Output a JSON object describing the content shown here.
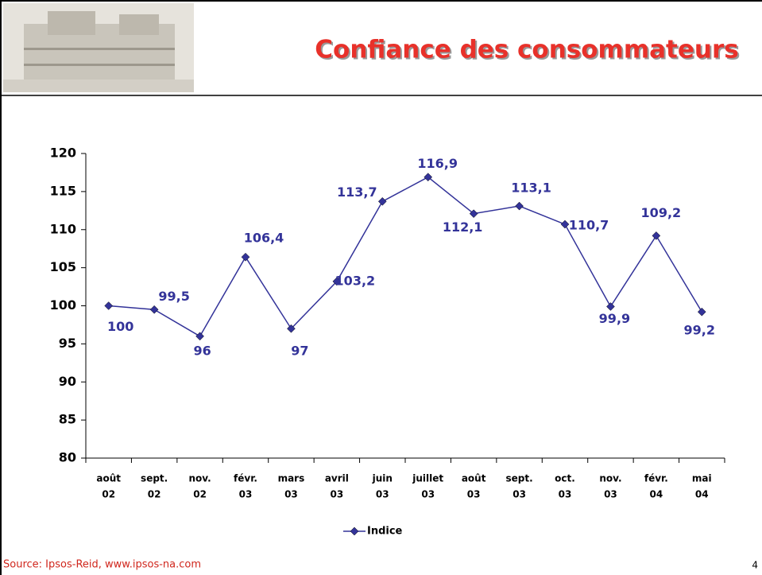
{
  "chart_data": {
    "type": "line",
    "title": "Confiance des consommateurs",
    "source": "Source: Ipsos-Reid, www.ipsos-na.com",
    "page_number": "4",
    "categories": [
      [
        "août",
        "02"
      ],
      [
        "sept.",
        "02"
      ],
      [
        "nov.",
        "02"
      ],
      [
        "févr.",
        "03"
      ],
      [
        "mars",
        "03"
      ],
      [
        "avril",
        "03"
      ],
      [
        "juin",
        "03"
      ],
      [
        "juillet",
        "03"
      ],
      [
        "août",
        "03"
      ],
      [
        "sept.",
        "03"
      ],
      [
        "oct.",
        "03"
      ],
      [
        "nov.",
        "03"
      ],
      [
        "févr.",
        "04"
      ],
      [
        "mai",
        "04"
      ]
    ],
    "series": [
      {
        "name": "Indice",
        "color": "#333399",
        "values": [
          100,
          99.5,
          96,
          106.4,
          97,
          103.2,
          113.7,
          116.9,
          112.1,
          113.1,
          110.7,
          99.9,
          109.2,
          99.2
        ],
        "value_labels": [
          "100",
          "99,5",
          "96",
          "106,4",
          "97",
          "103,2",
          "113,7",
          "116,9",
          "112,1",
          "113,1",
          "110,7",
          "99,9",
          "109,2",
          "99,2"
        ]
      }
    ],
    "ylim": [
      80,
      120
    ],
    "yticks": [
      80,
      85,
      90,
      95,
      100,
      105,
      110,
      115,
      120
    ],
    "legend": "bottom",
    "grid": false
  }
}
